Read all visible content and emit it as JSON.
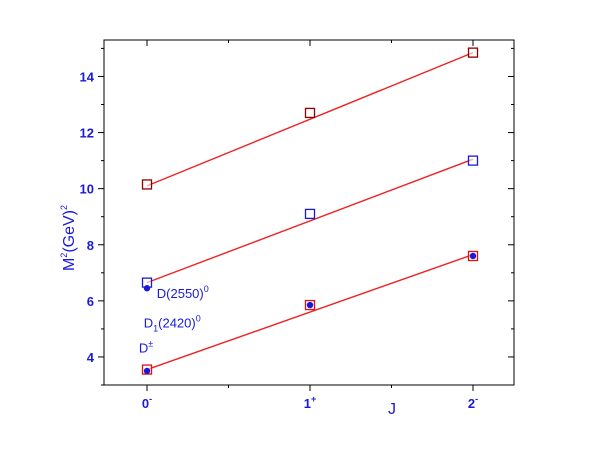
{
  "chart_data": {
    "type": "scatter",
    "title": "",
    "xlabel": "J",
    "ylabel": {
      "base": "M",
      "sup": "2",
      "mid": "(GeV)",
      "sup2": "2"
    },
    "ylim": [
      3,
      15.3
    ],
    "xlim": [
      -0.3,
      2.25
    ],
    "x_categories": [
      {
        "x": 0,
        "base": "0",
        "sup": "-"
      },
      {
        "x": 1,
        "base": "1",
        "sup": "+"
      },
      {
        "x": 2,
        "base": "2",
        "sup": "-"
      }
    ],
    "y_ticks": [
      4,
      6,
      8,
      10,
      12,
      14
    ],
    "y_minor_ticks": [
      3,
      5,
      7,
      9,
      11,
      13,
      15
    ],
    "x_minor_ticks": [
      0.5,
      1.5
    ],
    "series": [
      {
        "marker": "open-square",
        "color": "#8b0000",
        "x": [
          0,
          1,
          2
        ],
        "y": [
          10.15,
          12.7,
          14.85
        ]
      },
      {
        "marker": "open-square",
        "color": "#1a1ad6",
        "x": [
          0,
          1,
          2
        ],
        "y": [
          6.65,
          9.1,
          11.0
        ]
      },
      {
        "marker": "open-square",
        "color": "#e01010",
        "x": [
          0,
          1,
          2
        ],
        "y": [
          3.55,
          5.85,
          7.6
        ]
      },
      {
        "marker": "filled-circle",
        "color": "#1a1ad6",
        "x": [
          0,
          0,
          1,
          2
        ],
        "y": [
          3.5,
          6.45,
          5.85,
          7.6
        ]
      }
    ],
    "fit_lines": [
      {
        "color": "#ee2222",
        "x": [
          0,
          2
        ],
        "y": [
          10.1,
          14.85
        ]
      },
      {
        "color": "#ee2222",
        "x": [
          0,
          2
        ],
        "y": [
          6.65,
          11.05
        ]
      },
      {
        "color": "#ee2222",
        "x": [
          0,
          2
        ],
        "y": [
          3.55,
          7.65
        ]
      }
    ],
    "annotations": [
      {
        "id": "dpm",
        "base": "D",
        "sup": "±",
        "x": -0.05,
        "y": 4.15
      },
      {
        "id": "d2550",
        "base": "D(2550)",
        "sup": "0",
        "x": 0.06,
        "y": 6.1
      },
      {
        "id": "d1",
        "base": "D",
        "sub": "1",
        "rest": "(2420)",
        "sup": "0",
        "x": -0.02,
        "y": 5.05
      }
    ]
  }
}
